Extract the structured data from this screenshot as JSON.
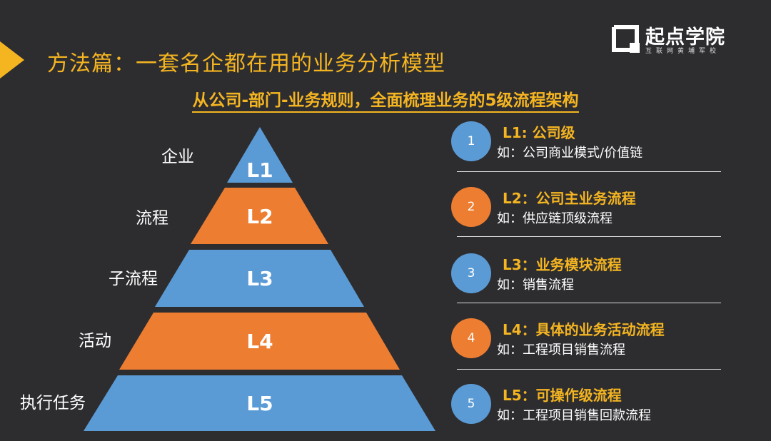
{
  "header": {
    "title": "方法篇：一套名企都在用的业务分析模型",
    "subtitle": "从公司-部门-业务规则，全面梳理业务的5级流程架构"
  },
  "logo": {
    "main": "起点学院",
    "sub": "互联网黄埔军校"
  },
  "colors": {
    "background": "#2d2d30",
    "accent": "#f5b521",
    "blue": "#5b9bd5",
    "orange": "#ed7d31"
  },
  "pyramid": {
    "tiers": [
      {
        "code": "L1",
        "label": "企业",
        "color": "blue"
      },
      {
        "code": "L2",
        "label": "流程",
        "color": "orange"
      },
      {
        "code": "L3",
        "label": "子流程",
        "color": "blue"
      },
      {
        "code": "L4",
        "label": "活动",
        "color": "orange"
      },
      {
        "code": "L5",
        "label": "执行任务",
        "color": "blue"
      }
    ]
  },
  "levels": [
    {
      "number": "1",
      "title": "L1: 公司级",
      "desc": "如：公司商业模式/价值链",
      "color": "blue"
    },
    {
      "number": "2",
      "title": "L2：公司主业务流程",
      "desc": "如：供应链顶级流程",
      "color": "orange"
    },
    {
      "number": "3",
      "title": "L3：业务模块流程",
      "desc": "如：销售流程",
      "color": "blue"
    },
    {
      "number": "4",
      "title": "L4：具体的业务活动流程",
      "desc": "如：工程项目销售流程",
      "color": "orange"
    },
    {
      "number": "5",
      "title": "L5：可操作级流程",
      "desc": "如：工程项目销售回款流程",
      "color": "blue"
    }
  ]
}
